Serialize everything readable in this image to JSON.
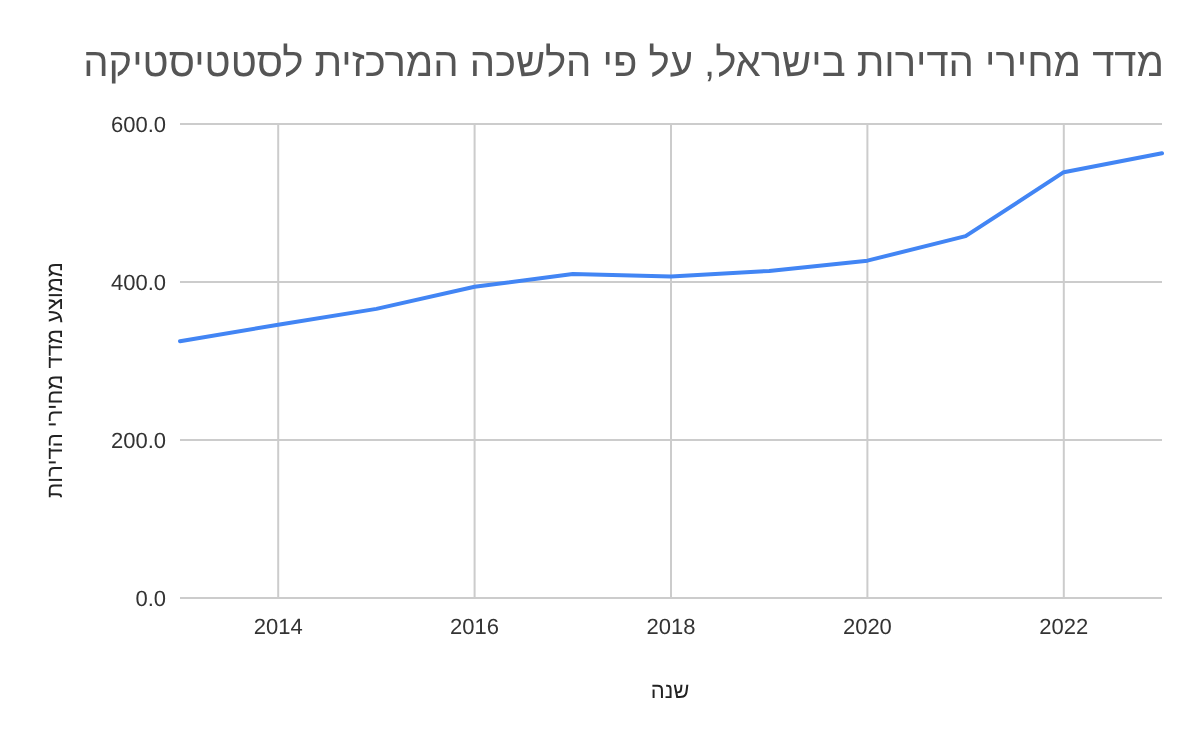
{
  "chart_data": {
    "type": "line",
    "title": "מדד מחירי הדירות בישראל, על פי הלשכה המרכזית לסטטיסטיקה",
    "xlabel": "שנה",
    "ylabel": "ממוצע מדד מחירי הדירות",
    "x": [
      2013,
      2014,
      2015,
      2016,
      2017,
      2018,
      2019,
      2020,
      2021,
      2022,
      2023
    ],
    "series": [
      {
        "color": "#4285f4",
        "values": [
          325,
          346,
          366,
          394,
          410,
          407,
          414,
          427,
          458,
          539,
          563
        ]
      }
    ],
    "xlim": [
      2013,
      2023
    ],
    "xticks": [
      2014,
      2016,
      2018,
      2020,
      2022
    ],
    "ylim": [
      0,
      600
    ],
    "yticks": [
      {
        "value": 0,
        "label": "0.0"
      },
      {
        "value": 200,
        "label": "200.0"
      },
      {
        "value": 400,
        "label": "400.0"
      },
      {
        "value": 600,
        "label": "600.0"
      }
    ],
    "grid": true,
    "marker": "none",
    "line_style": "solid"
  }
}
